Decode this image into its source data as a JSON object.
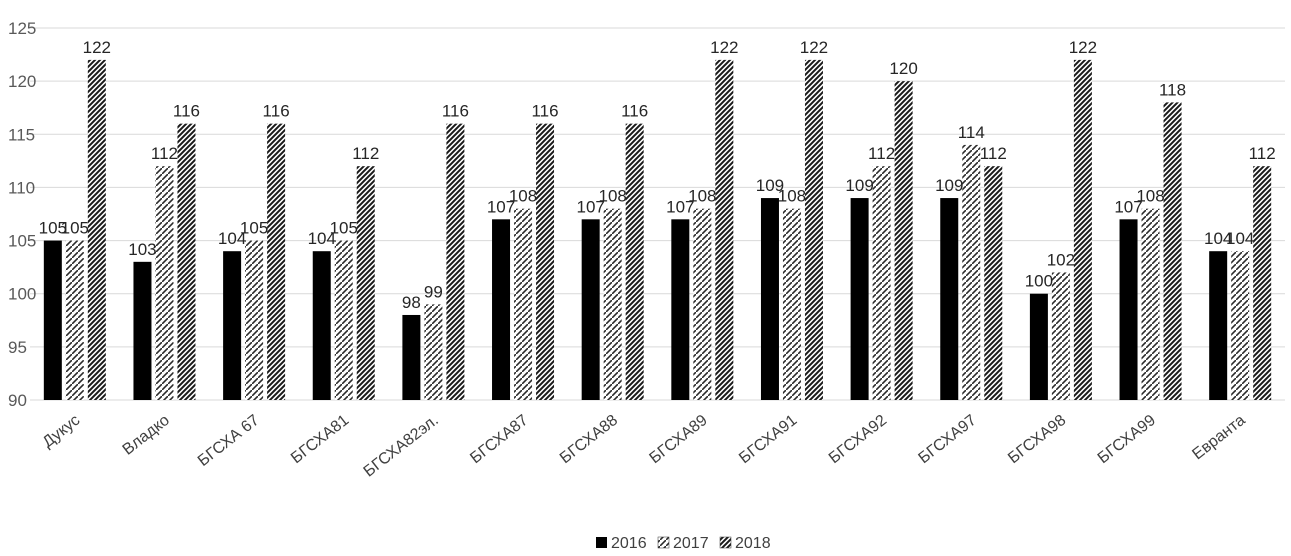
{
  "chart_data": {
    "type": "bar",
    "categories": [
      "Дукус",
      "Владко",
      "БГСХА 67",
      "БГСХА81",
      "БГСХА82эл.",
      "БГСХА87",
      "БГСХА88",
      "БГСХА89",
      "БГСХА91",
      "БГСХА92",
      "БГСХА97",
      "БГСХА98",
      "БГСХА99",
      "Евранта"
    ],
    "series": [
      {
        "name": "2016",
        "values": [
          105,
          103,
          104,
          104,
          98,
          107,
          107,
          107,
          109,
          109,
          109,
          100,
          107,
          104
        ]
      },
      {
        "name": "2017",
        "values": [
          105,
          112,
          105,
          105,
          99,
          108,
          108,
          108,
          108,
          112,
          114,
          102,
          108,
          104
        ]
      },
      {
        "name": "2018",
        "values": [
          122,
          116,
          116,
          112,
          116,
          116,
          116,
          122,
          122,
          120,
          112,
          122,
          118,
          112
        ]
      }
    ],
    "ylim": [
      90,
      125
    ],
    "yticks": [
      90,
      95,
      100,
      105,
      110,
      115,
      120,
      125
    ],
    "grid": true,
    "legend": "bottom-center"
  },
  "colors": {
    "2016": "#000000",
    "2017": "#2b2b2b",
    "2018": "#1a1a1a",
    "grid": "#d9d9d9"
  }
}
